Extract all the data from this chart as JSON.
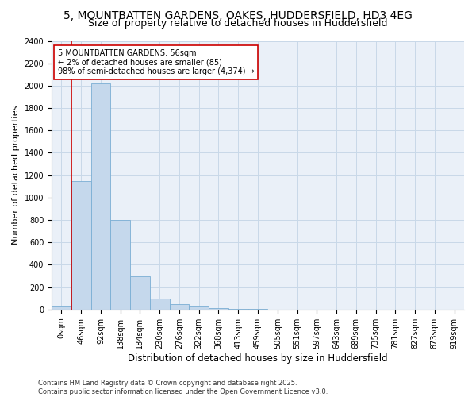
{
  "title": "5, MOUNTBATTEN GARDENS, OAKES, HUDDERSFIELD, HD3 4EG",
  "subtitle": "Size of property relative to detached houses in Huddersfield",
  "xlabel": "Distribution of detached houses by size in Huddersfield",
  "ylabel": "Number of detached properties",
  "bar_categories": [
    "0sqm",
    "46sqm",
    "92sqm",
    "138sqm",
    "184sqm",
    "230sqm",
    "276sqm",
    "322sqm",
    "368sqm",
    "413sqm",
    "459sqm",
    "505sqm",
    "551sqm",
    "597sqm",
    "643sqm",
    "689sqm",
    "735sqm",
    "781sqm",
    "827sqm",
    "873sqm",
    "919sqm"
  ],
  "bar_values": [
    30,
    1150,
    2020,
    800,
    300,
    100,
    50,
    30,
    15,
    5,
    3,
    2,
    2,
    1,
    1,
    1,
    1,
    1,
    0,
    0,
    0
  ],
  "bar_color": "#c5d8ec",
  "bar_edgecolor": "#7aaed4",
  "bar_linewidth": 0.6,
  "grid_color": "#c8d8e8",
  "background_color": "#ffffff",
  "axes_background": "#eaf0f8",
  "vline_x_index": 1,
  "vline_color": "#cc0000",
  "vline_linewidth": 1.2,
  "annotation_text": "5 MOUNTBATTEN GARDENS: 56sqm\n← 2% of detached houses are smaller (85)\n98% of semi-detached houses are larger (4,374) →",
  "annotation_box_facecolor": "#ffffff",
  "annotation_box_edgecolor": "#cc0000",
  "ylim": [
    0,
    2400
  ],
  "yticks": [
    0,
    200,
    400,
    600,
    800,
    1000,
    1200,
    1400,
    1600,
    1800,
    2000,
    2200,
    2400
  ],
  "footer": "Contains HM Land Registry data © Crown copyright and database right 2025.\nContains public sector information licensed under the Open Government Licence v3.0.",
  "title_fontsize": 10,
  "subtitle_fontsize": 9,
  "xlabel_fontsize": 8.5,
  "ylabel_fontsize": 8,
  "tick_fontsize": 7,
  "annotation_fontsize": 7,
  "footer_fontsize": 6
}
